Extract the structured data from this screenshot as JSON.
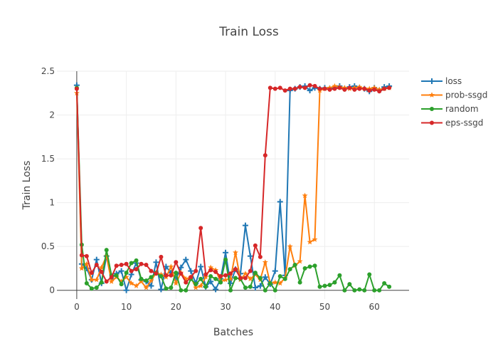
{
  "chart_data": {
    "type": "line",
    "title": "Train Loss",
    "xlabel": "Batches",
    "ylabel": "Train Loss",
    "xlim": [
      -4,
      67
    ],
    "ylim": [
      -0.1,
      2.5
    ],
    "xticks": [
      0,
      10,
      20,
      30,
      40,
      50,
      60
    ],
    "yticks": [
      0,
      0.5,
      1,
      1.5,
      2,
      2.5
    ],
    "xtick_labels": [
      "0",
      "10",
      "20",
      "30",
      "40",
      "50",
      "60"
    ],
    "ytick_labels": [
      "0",
      "0.5",
      "1",
      "1.5",
      "2",
      "2.5"
    ],
    "grid": true,
    "legend_position": "top-right",
    "series": [
      {
        "name": "loss",
        "color": "#1f77b4",
        "marker": "cross",
        "x": [
          0,
          1,
          2,
          3,
          4,
          5,
          6,
          7,
          8,
          9,
          10,
          11,
          12,
          13,
          14,
          15,
          16,
          17,
          18,
          19,
          20,
          21,
          22,
          23,
          24,
          25,
          26,
          27,
          28,
          29,
          30,
          31,
          32,
          33,
          34,
          35,
          36,
          37,
          38,
          39,
          40,
          41,
          42,
          43,
          44,
          45,
          46,
          47,
          48,
          49,
          50,
          51,
          52,
          53,
          54,
          55,
          56,
          57,
          58,
          59,
          60,
          61,
          62,
          63
        ],
        "values": [
          2.34,
          0.3,
          0.25,
          0.12,
          0.35,
          0.08,
          0.39,
          0.13,
          0.19,
          0.22,
          0.0,
          0.18,
          0.31,
          0.12,
          0.1,
          0.05,
          0.32,
          0.01,
          0.27,
          0.2,
          0.13,
          0.26,
          0.35,
          0.22,
          0.08,
          0.27,
          0.04,
          0.1,
          0.01,
          0.13,
          0.43,
          0.08,
          0.24,
          0.19,
          0.74,
          0.39,
          0.03,
          0.05,
          0.15,
          0.07,
          0.22,
          1.01,
          0.17,
          2.28,
          2.3,
          2.32,
          2.33,
          2.28,
          2.31,
          2.3,
          2.31,
          2.3,
          2.31,
          2.33,
          2.3,
          2.32,
          2.33,
          2.31,
          2.3,
          2.27,
          2.31,
          2.28,
          2.32,
          2.33
        ]
      },
      {
        "name": "prob-ssgd",
        "color": "#ff7f0e",
        "marker": "star",
        "x": [
          0,
          1,
          2,
          3,
          4,
          5,
          6,
          7,
          8,
          9,
          10,
          11,
          12,
          13,
          14,
          15,
          16,
          17,
          18,
          19,
          20,
          21,
          22,
          23,
          24,
          25,
          26,
          27,
          28,
          29,
          30,
          31,
          32,
          33,
          34,
          35,
          36,
          37,
          38,
          39,
          40,
          41,
          42,
          43,
          44,
          45,
          46,
          47,
          48,
          49,
          50,
          51,
          52,
          53,
          54,
          55,
          56,
          57,
          58,
          59,
          60,
          61,
          62,
          63
        ],
        "values": [
          2.25,
          0.25,
          0.3,
          0.12,
          0.12,
          0.26,
          0.39,
          0.1,
          0.15,
          0.1,
          0.15,
          0.08,
          0.05,
          0.1,
          0.03,
          0.11,
          0.2,
          0.18,
          0.15,
          0.27,
          0.08,
          0.2,
          0.13,
          0.15,
          0.03,
          0.05,
          0.15,
          0.26,
          0.23,
          0.1,
          0.12,
          0.13,
          0.43,
          0.12,
          0.19,
          0.13,
          0.18,
          0.12,
          0.32,
          0.08,
          0.09,
          0.08,
          0.14,
          0.5,
          0.28,
          0.33,
          1.08,
          0.55,
          0.58,
          2.28,
          2.3,
          2.31,
          2.33,
          2.32,
          2.31,
          2.3,
          2.31,
          2.32,
          2.3,
          2.3,
          2.31,
          2.29,
          2.3,
          2.31
        ]
      },
      {
        "name": "random",
        "color": "#2ca02c",
        "marker": "dot",
        "x": [
          0,
          1,
          2,
          3,
          4,
          5,
          6,
          7,
          8,
          9,
          10,
          11,
          12,
          13,
          14,
          15,
          16,
          17,
          18,
          19,
          20,
          21,
          22,
          23,
          24,
          25,
          26,
          27,
          28,
          29,
          30,
          31,
          32,
          33,
          34,
          35,
          36,
          37,
          38,
          39,
          40,
          41,
          42,
          43,
          44,
          45,
          46,
          47,
          48,
          49,
          50,
          51,
          52,
          53,
          54,
          55,
          56,
          57,
          58,
          59,
          60,
          61,
          62,
          63
        ],
        "values": [
          2.31,
          0.52,
          0.08,
          0.02,
          0.03,
          0.09,
          0.46,
          0.17,
          0.17,
          0.07,
          0.2,
          0.31,
          0.34,
          0.13,
          0.11,
          0.15,
          0.2,
          0.16,
          0.02,
          0.03,
          0.2,
          0.0,
          0.0,
          0.13,
          0.07,
          0.13,
          0.04,
          0.16,
          0.13,
          0.09,
          0.35,
          0.0,
          0.14,
          0.13,
          0.03,
          0.04,
          0.2,
          0.14,
          0.0,
          0.08,
          0.0,
          0.16,
          0.13,
          0.24,
          0.29,
          0.09,
          0.25,
          0.27,
          0.28,
          0.04,
          0.05,
          0.06,
          0.09,
          0.17,
          0.0,
          0.07,
          0.0,
          0.01,
          0.0,
          0.18,
          0.0,
          0.0,
          0.08,
          0.04
        ]
      },
      {
        "name": "eps-ssgd",
        "color": "#d62728",
        "marker": "dot",
        "x": [
          0,
          1,
          2,
          3,
          4,
          5,
          6,
          7,
          8,
          9,
          10,
          11,
          12,
          13,
          14,
          15,
          16,
          17,
          18,
          19,
          20,
          21,
          22,
          23,
          24,
          25,
          26,
          27,
          28,
          29,
          30,
          31,
          32,
          33,
          34,
          35,
          36,
          37,
          38,
          39,
          40,
          41,
          42,
          43,
          44,
          45,
          46,
          47,
          48,
          49,
          50,
          51,
          52,
          53,
          54,
          55,
          56,
          57,
          58,
          59,
          60,
          61,
          62,
          63
        ],
        "values": [
          2.3,
          0.4,
          0.39,
          0.2,
          0.29,
          0.21,
          0.1,
          0.15,
          0.28,
          0.29,
          0.3,
          0.22,
          0.24,
          0.3,
          0.29,
          0.22,
          0.19,
          0.38,
          0.17,
          0.17,
          0.32,
          0.19,
          0.09,
          0.15,
          0.22,
          0.71,
          0.18,
          0.23,
          0.21,
          0.16,
          0.17,
          0.19,
          0.24,
          0.14,
          0.14,
          0.22,
          0.51,
          0.38,
          1.54,
          2.31,
          2.3,
          2.31,
          2.28,
          2.3,
          2.3,
          2.32,
          2.31,
          2.34,
          2.33,
          2.3,
          2.3,
          2.29,
          2.3,
          2.31,
          2.29,
          2.31,
          2.29,
          2.3,
          2.3,
          2.28,
          2.29,
          2.27,
          2.3,
          2.31
        ]
      }
    ]
  }
}
